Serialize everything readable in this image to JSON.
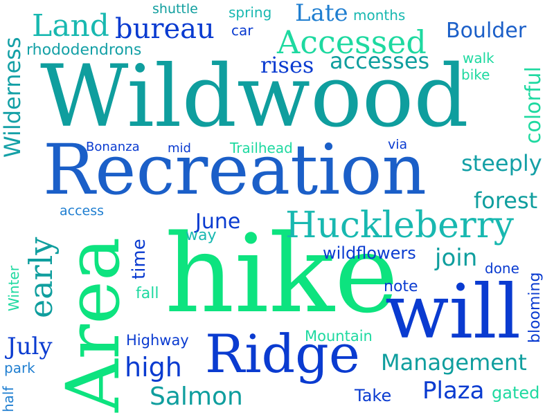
{
  "words": {
    "wildwood": "Wildwood",
    "recreation": "Recreation",
    "hike": "hike",
    "area": "Area",
    "will": "will",
    "ridge": "Ridge",
    "huckleberry": "Huckleberry",
    "accessed": "Accessed",
    "land": "Land",
    "bureau": "bureau",
    "late": "Late",
    "months": "months",
    "boulder": "Boulder",
    "shuttle": "shuttle",
    "spring": "spring",
    "car": "car",
    "rhododendrons": "rhododendrons",
    "rises": "rises",
    "accesses": "accesses",
    "walk": "walk",
    "bike": "bike",
    "colorful": "colorful",
    "wilderness": "Wilderness",
    "bonanza": "Bonanza",
    "mid": "mid",
    "trailhead": "Trailhead",
    "via": "via",
    "steeply": "steeply",
    "forest": "forest",
    "access": "access",
    "june": "June",
    "way": "way",
    "early": "early",
    "time": "time",
    "wildflowers": "wildflowers",
    "join": "join",
    "done": "done",
    "note": "note",
    "fall": "fall",
    "winter": "Winter",
    "blooming": "blooming",
    "highway": "Highway",
    "mountain": "Mountain",
    "july": "July",
    "park": "park",
    "high": "high",
    "management": "Management",
    "half": "half",
    "salmon": "Salmon",
    "take": "Take",
    "plaza": "Plaza",
    "gated": "gated"
  },
  "colors": {
    "teal": "#0f9e9e",
    "blue": "#1b5fc8",
    "deep_blue": "#0a3bd0",
    "green": "#0de37f",
    "aqua": "#1ed9a0"
  }
}
